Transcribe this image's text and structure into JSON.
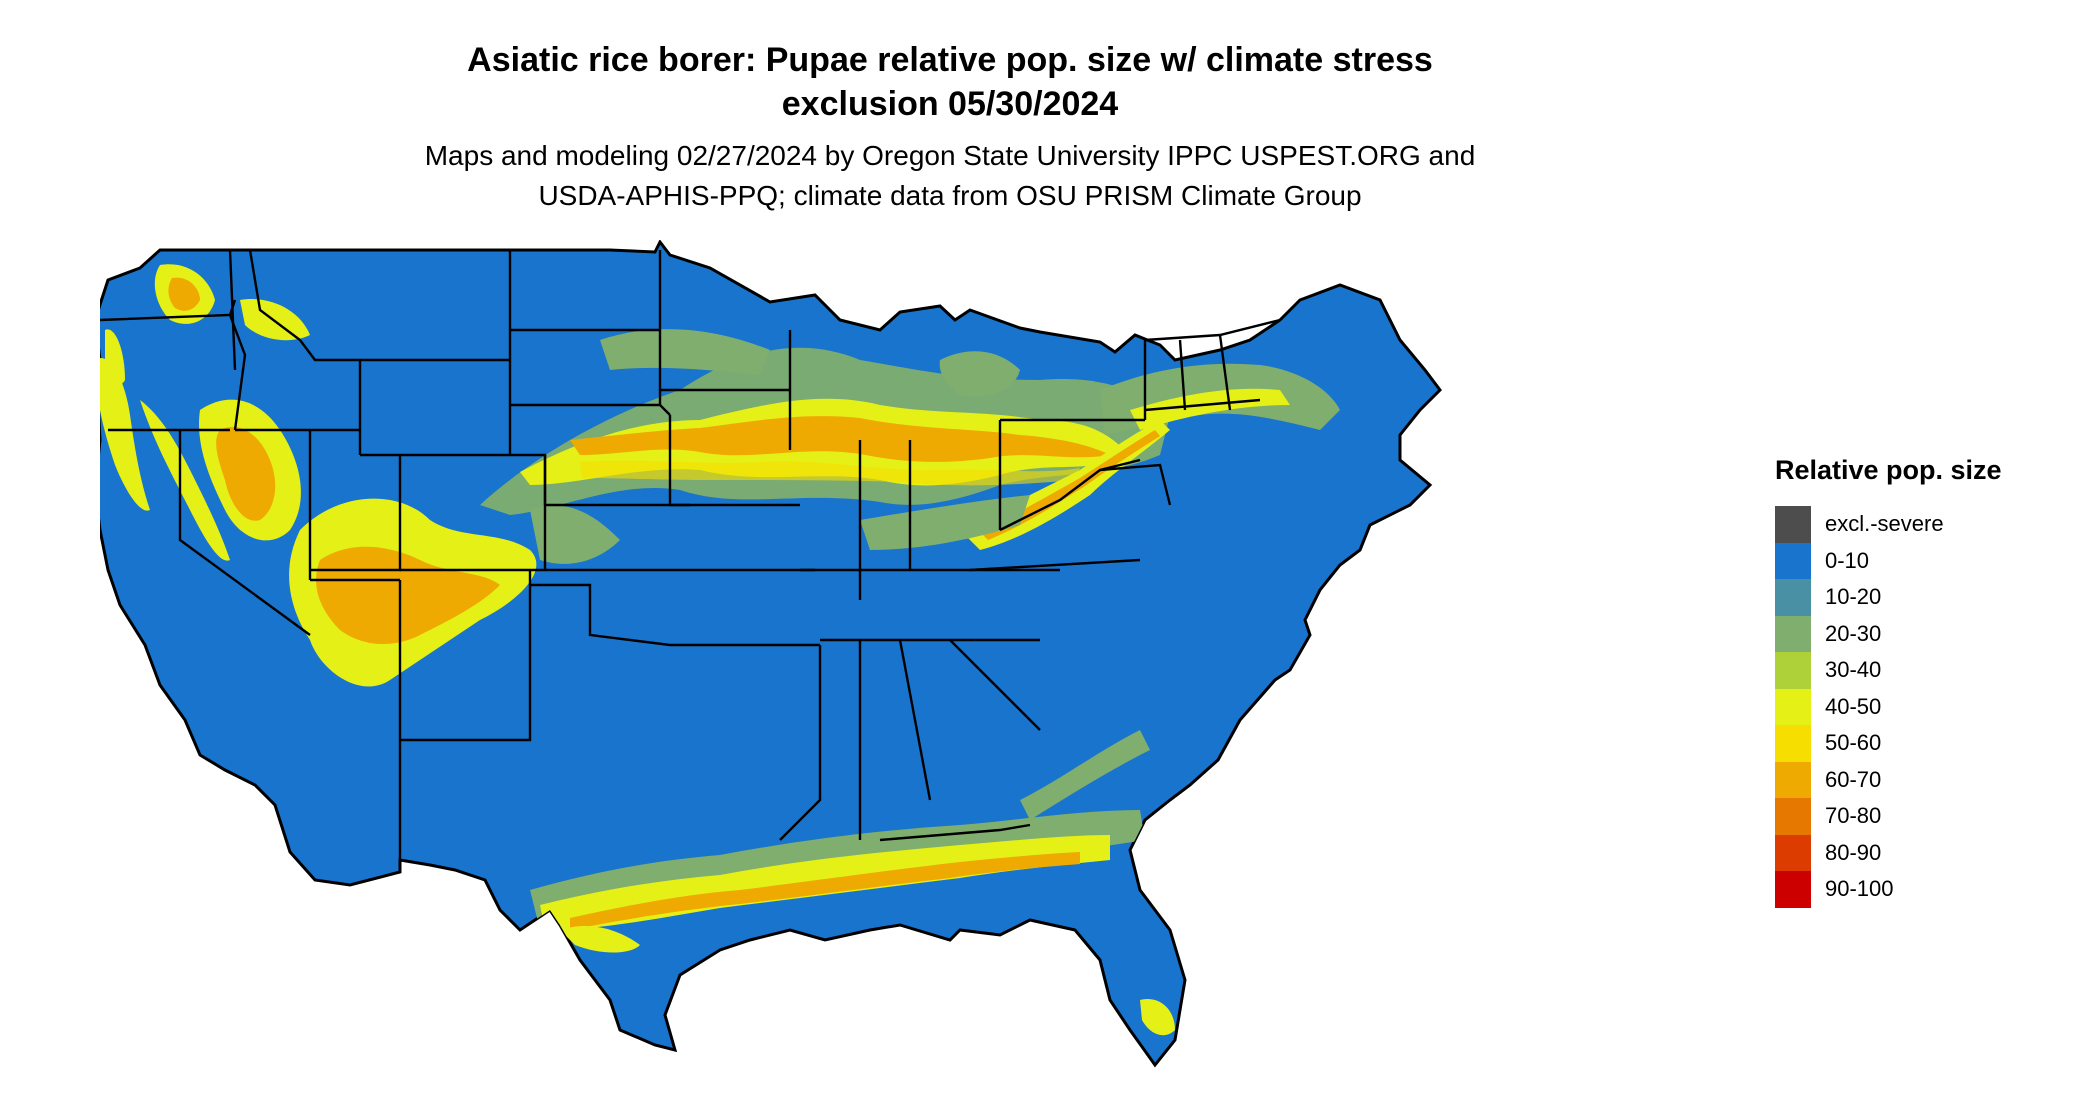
{
  "title": {
    "line1": "Asiatic rice borer: Pupae relative pop. size w/ climate stress",
    "line2": "exclusion 05/30/2024"
  },
  "subtitle": {
    "line1": "Maps and modeling 02/27/2024 by Oregon State University IPPC USPEST.ORG and",
    "line2": "USDA-APHIS-PPQ; climate data from OSU PRISM Climate Group"
  },
  "legend": {
    "title": "Relative pop. size",
    "items": [
      {
        "label": "excl.-severe",
        "color": "#4d4d4d"
      },
      {
        "label": "0-10",
        "color": "#1874cd"
      },
      {
        "label": "10-20",
        "color": "#4a90a4"
      },
      {
        "label": "20-30",
        "color": "#7fae6e"
      },
      {
        "label": "30-40",
        "color": "#aed13a"
      },
      {
        "label": "40-50",
        "color": "#e5f016"
      },
      {
        "label": "50-60",
        "color": "#f5de00"
      },
      {
        "label": "60-70",
        "color": "#eeaa00"
      },
      {
        "label": "70-80",
        "color": "#e67800"
      },
      {
        "label": "80-90",
        "color": "#dc3c00"
      },
      {
        "label": "90-100",
        "color": "#cd0000"
      }
    ]
  },
  "map": {
    "base_color": "#1874cd",
    "border_color": "#000000"
  }
}
